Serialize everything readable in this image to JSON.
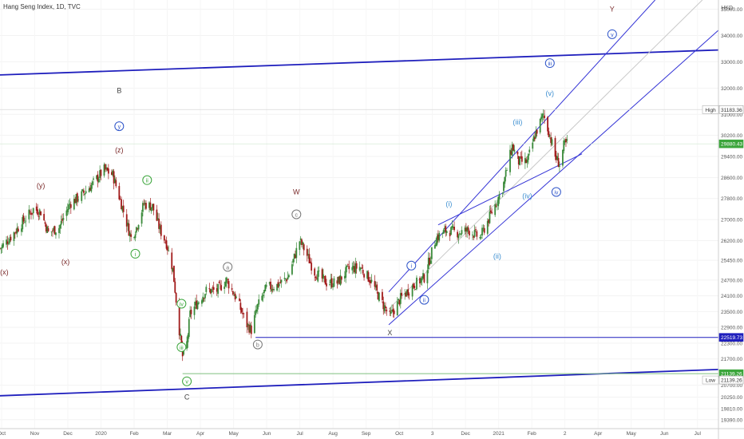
{
  "header": {
    "title": "Hang Seng Index, 1D, TVC",
    "currency": "HKD"
  },
  "colors": {
    "up": "#3a8a3a",
    "down": "#a11a1a",
    "trendline": "#1f1fbd",
    "channel": "#3434d6",
    "wave_blue": "#2f55c9",
    "wave_lightblue": "#3d8fd1",
    "wave_green": "#3aa53a",
    "wave_maroon": "#7a2a2a",
    "wave_gray": "#777777"
  },
  "chart_data": {
    "type": "candlestick",
    "title": "Hang Seng Index, 1D, TVC",
    "y_axis": {
      "ticks": [
        "35000.00",
        "34000.00",
        "33000.00",
        "32000.00",
        "31000.00",
        "30200.00",
        "29400.00",
        "28600.00",
        "27800.00",
        "27000.00",
        "26200.00",
        "25450.00",
        "24700.00",
        "24100.00",
        "23500.00",
        "22900.00",
        "22300.00",
        "21700.00",
        "20700.00",
        "20250.00",
        "19810.00",
        "19390.00"
      ],
      "range": [
        19050,
        35350
      ]
    },
    "x_axis": {
      "ticks": [
        "Oct",
        "Nov",
        "Dec",
        "2020",
        "Feb",
        "Mar",
        "Apr",
        "May",
        "Jun",
        "Jul",
        "Aug",
        "Sep",
        "Oct",
        "3",
        "Dec",
        "2021",
        "Feb",
        "2",
        "Apr",
        "May",
        "Jun",
        "Jul"
      ],
      "range": [
        "2019-10-01",
        "2021-07-31"
      ]
    },
    "price_labels": [
      {
        "caption": "High",
        "value": "31183.36",
        "y": 31183.36,
        "style": "outline"
      },
      {
        "caption": "",
        "value": "29880.43",
        "y": 29880.43,
        "style": "green"
      },
      {
        "caption": "",
        "value": "22519.73",
        "y": 22519.73,
        "style": "blue"
      },
      {
        "caption": "",
        "value": "21139.26",
        "y": 21139.26,
        "style": "green"
      },
      {
        "caption": "Low",
        "value": "21139.26",
        "y": 20900,
        "style": "outline"
      }
    ],
    "series": [
      {
        "name": "",
        "kind": "close",
        "x": [
          "2019-10-01",
          "2019-10-10",
          "2019-10-20",
          "2019-11-01",
          "2019-11-08",
          "2019-11-15",
          "2019-11-25",
          "2019-12-05",
          "2019-12-15",
          "2019-12-25",
          "2020-01-06",
          "2020-01-14",
          "2020-01-22",
          "2020-01-31",
          "2020-02-05",
          "2020-02-12",
          "2020-02-20",
          "2020-02-27",
          "2020-03-04",
          "2020-03-10",
          "2020-03-16",
          "2020-03-19",
          "2020-03-23",
          "2020-03-26",
          "2020-04-01",
          "2020-04-10",
          "2020-04-20",
          "2020-04-29",
          "2020-05-08",
          "2020-05-18",
          "2020-05-22",
          "2020-05-28",
          "2020-06-05",
          "2020-06-15",
          "2020-06-25",
          "2020-07-06",
          "2020-07-10",
          "2020-07-20",
          "2020-07-31",
          "2020-08-10",
          "2020-08-20",
          "2020-08-31",
          "2020-09-10",
          "2020-09-20",
          "2020-09-28",
          "2020-10-08",
          "2020-10-20",
          "2020-10-30",
          "2020-11-10",
          "2020-11-20",
          "2020-12-01",
          "2020-12-10",
          "2020-12-21",
          "2020-12-31",
          "2021-01-11",
          "2021-01-20",
          "2021-01-26",
          "2021-02-03",
          "2021-02-10",
          "2021-02-18",
          "2021-02-24",
          "2021-03-01",
          "2021-03-05",
          "2021-03-09",
          "2021-03-12"
        ],
        "y": [
          25900,
          26300,
          26800,
          27400,
          27300,
          26500,
          26700,
          27600,
          27900,
          28300,
          28900,
          28700,
          27600,
          26300,
          26700,
          27600,
          27500,
          26600,
          26100,
          25100,
          22800,
          21800,
          22300,
          23400,
          23800,
          24300,
          24300,
          24700,
          24000,
          23000,
          22800,
          23700,
          24400,
          24500,
          24800,
          26200,
          25900,
          25000,
          24600,
          24600,
          25100,
          25200,
          24700,
          23900,
          23300,
          24000,
          24500,
          24800,
          26300,
          26600,
          26500,
          26600,
          26300,
          27200,
          28200,
          29800,
          29200,
          29200,
          30200,
          31000,
          30200,
          29400,
          29100,
          29800,
          29900
        ]
      },
      {
        "name": "",
        "kind": "trendline",
        "x": [
          "2019-10-01",
          "2021-07-31"
        ],
        "y": [
          32500,
          33450
        ]
      },
      {
        "name": "",
        "kind": "trendline",
        "x": [
          "2019-10-01",
          "2021-07-31"
        ],
        "y": [
          20300,
          21300
        ]
      },
      {
        "name": "",
        "kind": "horizontal",
        "x": [
          "2020-05-26",
          "2021-07-31"
        ],
        "y": [
          22519.73,
          22519.73
        ]
      },
      {
        "name": "",
        "kind": "horizontal",
        "x": [
          "2020-03-19",
          "2021-07-31"
        ],
        "y": [
          21139.26,
          21139.26
        ]
      },
      {
        "name": "",
        "kind": "channel",
        "x": [
          "2020-09-27",
          "2021-06-02"
        ],
        "y": [
          24250,
          35350
        ]
      },
      {
        "name": "",
        "kind": "channel",
        "x": [
          "2020-09-27",
          "2021-07-31"
        ],
        "y": [
          23000,
          34200
        ]
      },
      {
        "name": "",
        "kind": "channel-mid",
        "x": [
          "2020-09-27",
          "2021-07-16"
        ],
        "y": [
          23600,
          35350
        ]
      },
      {
        "name": "",
        "kind": "trendline",
        "x": [
          "2020-11-12",
          "2021-03-26"
        ],
        "y": [
          26800,
          29500
        ]
      }
    ],
    "annotations": [
      {
        "text": "B",
        "x": "2020-01-20",
        "y": 31900,
        "style": "plain",
        "color": "#444444"
      },
      {
        "text": "y",
        "x": "2020-01-20",
        "y": 30550,
        "style": "circle",
        "color": "#2f55c9"
      },
      {
        "text": "(z)",
        "x": "2020-01-20",
        "y": 29650,
        "style": "plain",
        "color": "#7a2a2a"
      },
      {
        "text": "(y)",
        "x": "2019-11-08",
        "y": 28300,
        "style": "plain",
        "color": "#7a2a2a"
      },
      {
        "text": "(x)",
        "x": "2019-10-05",
        "y": 25000,
        "style": "plain",
        "color": "#7a2a2a"
      },
      {
        "text": "(x)",
        "x": "2019-12-01",
        "y": 25400,
        "style": "plain",
        "color": "#7a2a2a"
      },
      {
        "text": "ii",
        "x": "2020-02-15",
        "y": 28500,
        "style": "circle",
        "color": "#3aa53a"
      },
      {
        "text": "i",
        "x": "2020-02-04",
        "y": 25700,
        "style": "circle",
        "color": "#3aa53a"
      },
      {
        "text": "iv",
        "x": "2020-03-18",
        "y": 23800,
        "style": "circle",
        "color": "#3aa53a"
      },
      {
        "text": "iii",
        "x": "2020-03-18",
        "y": 22150,
        "style": "circle",
        "color": "#3aa53a"
      },
      {
        "text": "v",
        "x": "2020-03-23",
        "y": 20850,
        "style": "circle",
        "color": "#3aa53a"
      },
      {
        "text": "C",
        "x": "2020-03-23",
        "y": 20250,
        "style": "plain",
        "color": "#444444"
      },
      {
        "text": "a",
        "x": "2020-04-30",
        "y": 25200,
        "style": "circle",
        "color": "#777777"
      },
      {
        "text": "b",
        "x": "2020-05-28",
        "y": 22250,
        "style": "circle",
        "color": "#777777"
      },
      {
        "text": "W",
        "x": "2020-07-03",
        "y": 28050,
        "style": "plain",
        "color": "#7a2a2a"
      },
      {
        "text": "c",
        "x": "2020-07-03",
        "y": 27200,
        "style": "circle",
        "color": "#777777"
      },
      {
        "text": "X",
        "x": "2020-09-28",
        "y": 22700,
        "style": "plain",
        "color": "#444444"
      },
      {
        "text": "i",
        "x": "2020-10-18",
        "y": 25250,
        "style": "circle",
        "color": "#2f55c9"
      },
      {
        "text": "ii",
        "x": "2020-10-30",
        "y": 23950,
        "style": "circle",
        "color": "#2f55c9"
      },
      {
        "text": "(i)",
        "x": "2020-11-22",
        "y": 27600,
        "style": "plain",
        "color": "#3d8fd1"
      },
      {
        "text": "(ii)",
        "x": "2021-01-06",
        "y": 25600,
        "style": "plain",
        "color": "#3d8fd1"
      },
      {
        "text": "(iii)",
        "x": "2021-01-25",
        "y": 30700,
        "style": "plain",
        "color": "#3d8fd1"
      },
      {
        "text": "(iv)",
        "x": "2021-02-03",
        "y": 27900,
        "style": "plain",
        "color": "#3d8fd1"
      },
      {
        "text": "(v)",
        "x": "2021-02-24",
        "y": 31800,
        "style": "plain",
        "color": "#3d8fd1"
      },
      {
        "text": "iii",
        "x": "2021-02-24",
        "y": 32950,
        "style": "circle",
        "color": "#2f55c9"
      },
      {
        "text": "iv",
        "x": "2021-03-02",
        "y": 28050,
        "style": "circle",
        "color": "#2f55c9"
      },
      {
        "text": "Y",
        "x": "2021-04-23",
        "y": 35000,
        "style": "plain",
        "color": "#7a2a2a"
      },
      {
        "text": "v",
        "x": "2021-04-23",
        "y": 34050,
        "style": "circle",
        "color": "#2f55c9"
      }
    ]
  }
}
